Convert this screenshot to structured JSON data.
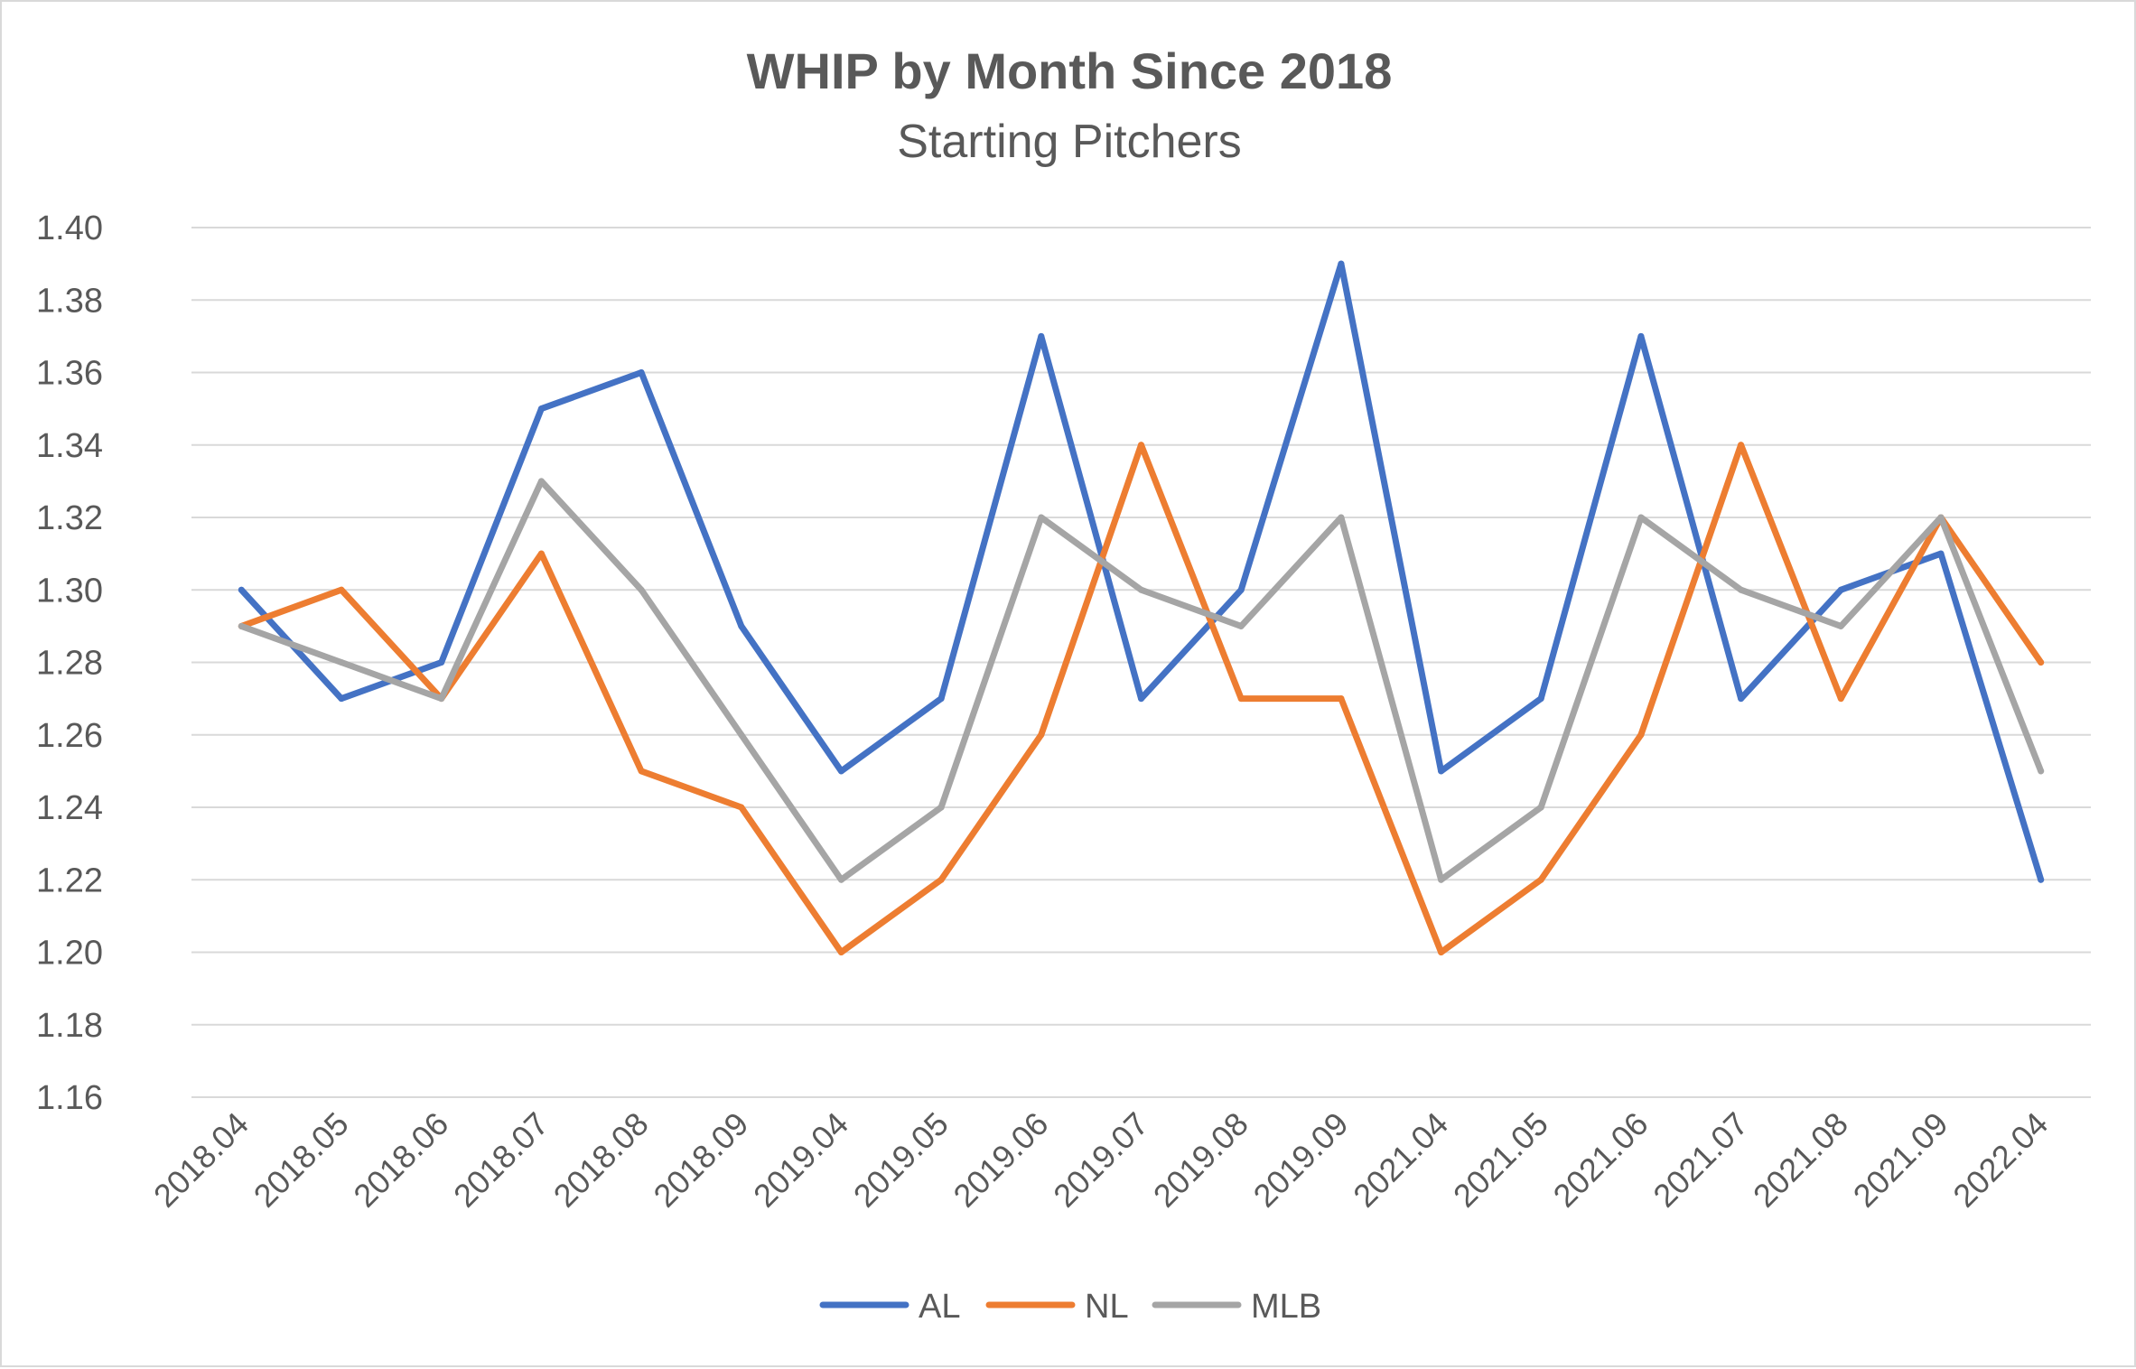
{
  "chart_data": {
    "type": "line",
    "title": "WHIP by Month Since 2018",
    "subtitle": "Starting Pitchers",
    "categories": [
      "2018.04",
      "2018.05",
      "2018.06",
      "2018.07",
      "2018.08",
      "2018.09",
      "2019.04",
      "2019.05",
      "2019.06",
      "2019.07",
      "2019.08",
      "2019.09",
      "2021.04",
      "2021.05",
      "2021.06",
      "2021.07",
      "2021.08",
      "2021.09",
      "2022.04"
    ],
    "yticks": [
      "1.16",
      "1.18",
      "1.20",
      "1.22",
      "1.24",
      "1.26",
      "1.28",
      "1.30",
      "1.32",
      "1.34",
      "1.36",
      "1.38",
      "1.40"
    ],
    "ylim": [
      1.16,
      1.4
    ],
    "grid": true,
    "legend_position": "bottom",
    "series": [
      {
        "name": "AL",
        "color": "#4472C4",
        "values": [
          1.3,
          1.27,
          1.28,
          1.35,
          1.36,
          1.29,
          1.25,
          1.27,
          1.37,
          1.27,
          1.3,
          1.39,
          1.25,
          1.27,
          1.37,
          1.27,
          1.3,
          1.31,
          1.22
        ]
      },
      {
        "name": "NL",
        "color": "#ED7D31",
        "values": [
          1.29,
          1.3,
          1.27,
          1.31,
          1.25,
          1.24,
          1.2,
          1.22,
          1.26,
          1.34,
          1.27,
          1.27,
          1.2,
          1.22,
          1.26,
          1.34,
          1.27,
          1.32,
          1.28
        ]
      },
      {
        "name": "MLB",
        "color": "#A5A5A5",
        "values": [
          1.29,
          1.28,
          1.27,
          1.33,
          1.3,
          1.26,
          1.22,
          1.24,
          1.32,
          1.3,
          1.29,
          1.32,
          1.22,
          1.24,
          1.32,
          1.3,
          1.29,
          1.32,
          1.25
        ]
      }
    ]
  }
}
